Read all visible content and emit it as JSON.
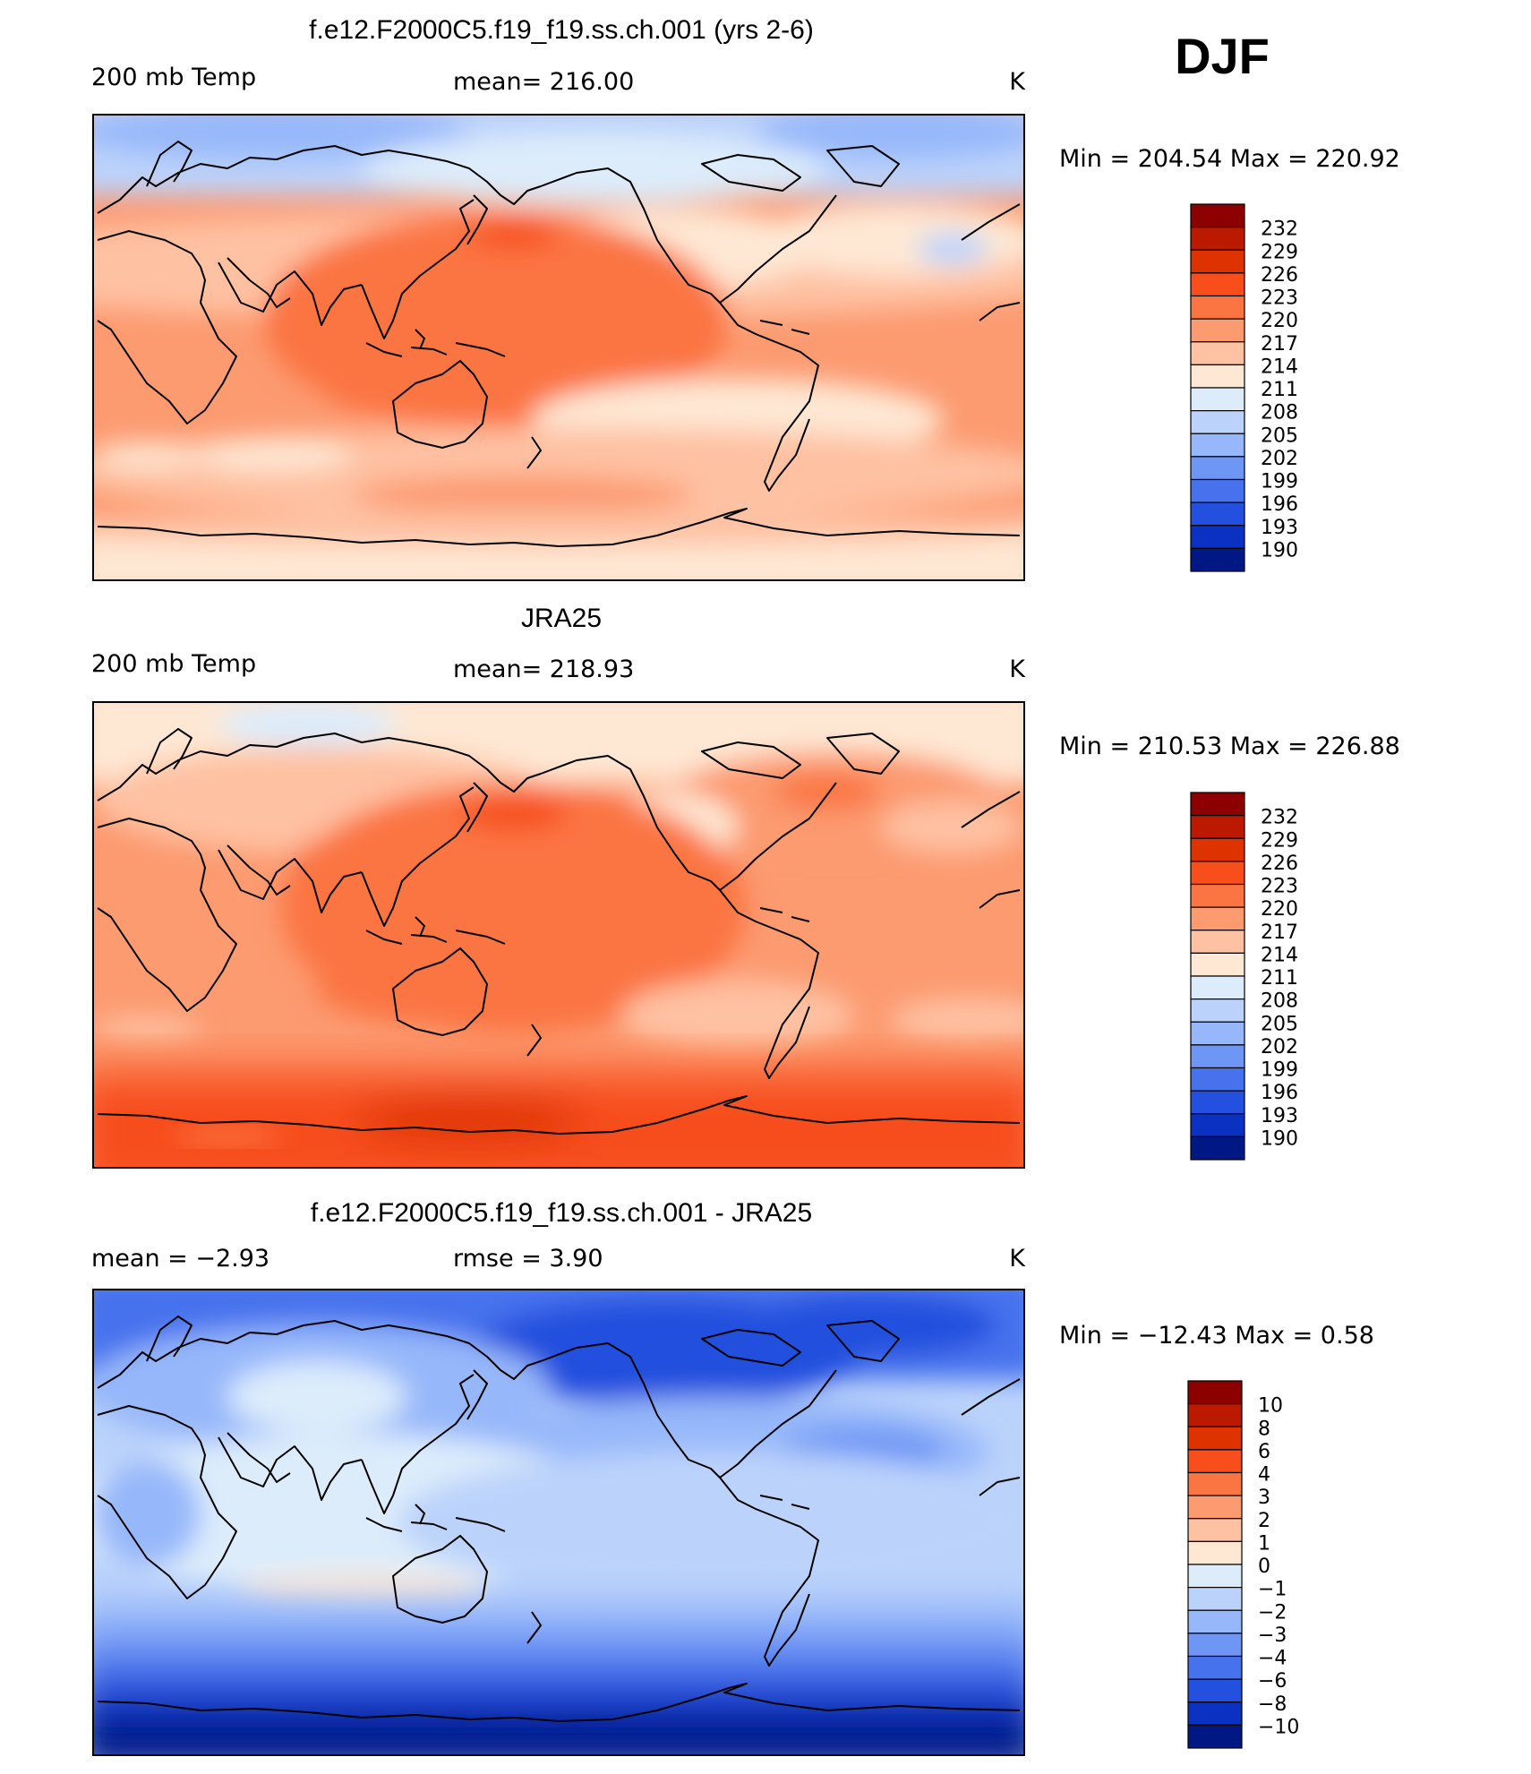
{
  "season_label": "DJF",
  "panels": [
    {
      "title": "f.e12.F2000C5.f19_f19.ss.ch.001 (yrs 2-6)",
      "left_label": "200 mb Temp",
      "center_label": "mean=  216.00",
      "right_label": "K",
      "minmax_label": "Min  =  204.54  Max  =  220.92"
    },
    {
      "title": "JRA25",
      "left_label": "200 mb Temp",
      "center_label": "mean=  218.93",
      "right_label": "K",
      "minmax_label": "Min  =  210.53  Max  =  226.88"
    },
    {
      "title": "f.e12.F2000C5.f19_f19.ss.ch.001 - JRA25",
      "left_label": "mean  =    −2.93",
      "center_label": "rmse  =      3.90",
      "right_label": "K",
      "minmax_label": "Min  =  −12.43  Max  =     0.58"
    }
  ],
  "legends": {
    "abs": {
      "labels": [
        "232",
        "229",
        "226",
        "223",
        "220",
        "217",
        "214",
        "211",
        "208",
        "205",
        "202",
        "199",
        "196",
        "193",
        "190"
      ],
      "colors": [
        "#8c0000",
        "#bb1a00",
        "#de3300",
        "#f74e1c",
        "#fb7542",
        "#fc9a70",
        "#fec1a2",
        "#fee8d4",
        "#dcecfb",
        "#bbd3fb",
        "#96b7fa",
        "#6e96f5",
        "#4672ed",
        "#2350de",
        "#0b31c3",
        "#001884"
      ]
    },
    "diff": {
      "labels": [
        "10",
        "8",
        "6",
        "4",
        "3",
        "2",
        "1",
        "0",
        "−1",
        "−2",
        "−3",
        "−4",
        "−6",
        "−8",
        "−10"
      ],
      "colors": [
        "#8c0000",
        "#bb1a00",
        "#de3300",
        "#f74e1c",
        "#fb7542",
        "#fc9a70",
        "#fec1a2",
        "#fee8d4",
        "#dcecfb",
        "#bbd3fb",
        "#96b7fa",
        "#6e96f5",
        "#4672ed",
        "#2350de",
        "#0b31c3",
        "#001884"
      ]
    }
  },
  "chart_data": [
    {
      "type": "heatmap",
      "title": "f.e12.F2000C5.f19_f19.ss.ch.001 (yrs 2-6)",
      "variable": "200 mb Temp",
      "units": "K",
      "season": "DJF",
      "mean": 216.0,
      "min": 204.54,
      "max": 220.92,
      "contour_levels": [
        190,
        193,
        196,
        199,
        202,
        205,
        208,
        211,
        214,
        217,
        220,
        223,
        226,
        229,
        232
      ]
    },
    {
      "type": "heatmap",
      "title": "JRA25",
      "variable": "200 mb Temp",
      "units": "K",
      "season": "DJF",
      "mean": 218.93,
      "min": 210.53,
      "max": 226.88,
      "contour_levels": [
        190,
        193,
        196,
        199,
        202,
        205,
        208,
        211,
        214,
        217,
        220,
        223,
        226,
        229,
        232
      ]
    },
    {
      "type": "heatmap",
      "title": "f.e12.F2000C5.f19_f19.ss.ch.001 - JRA25",
      "units": "K",
      "season": "DJF",
      "mean": -2.93,
      "rmse": 3.9,
      "min": -12.43,
      "max": 0.58,
      "contour_levels": [
        -10,
        -8,
        -6,
        -4,
        -3,
        -2,
        -1,
        0,
        1,
        2,
        3,
        4,
        6,
        8,
        10
      ]
    }
  ]
}
